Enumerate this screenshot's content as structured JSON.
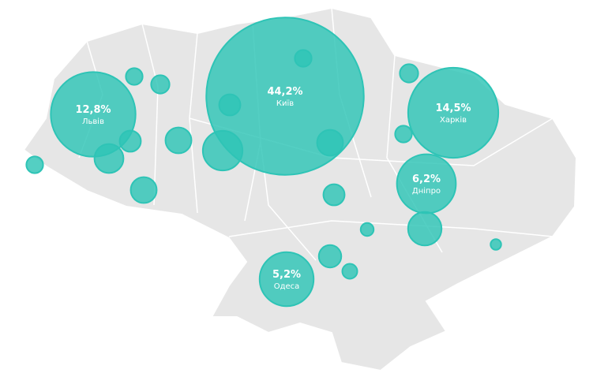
{
  "chart_data": {
    "type": "bubble-map",
    "categories": [
      "Київ",
      "Львів",
      "Харків",
      "Дніпро",
      "Одеса",
      null,
      null,
      null,
      null,
      null,
      null,
      null,
      null,
      null,
      null,
      null,
      null,
      null,
      null,
      null,
      null,
      null,
      null,
      null
    ],
    "values": [
      44.2,
      12.8,
      14.5,
      6.2,
      5.2,
      0.5,
      0.8,
      1.2,
      2.8,
      1.2,
      0.8,
      1.5,
      1.2,
      0.5,
      0.5,
      0.6,
      0.6,
      0.5,
      0.8,
      0.3,
      2.0,
      0.9,
      0.4,
      0.2
    ],
    "value_labels": [
      "44,2%",
      "12,8%",
      "14,5%",
      "6,2%",
      "5,2%",
      null,
      null,
      null,
      null,
      null,
      null,
      null,
      null,
      null,
      null,
      null,
      null,
      null,
      null,
      null,
      null,
      null,
      null,
      null
    ],
    "color": "#2ec4b6"
  }
}
